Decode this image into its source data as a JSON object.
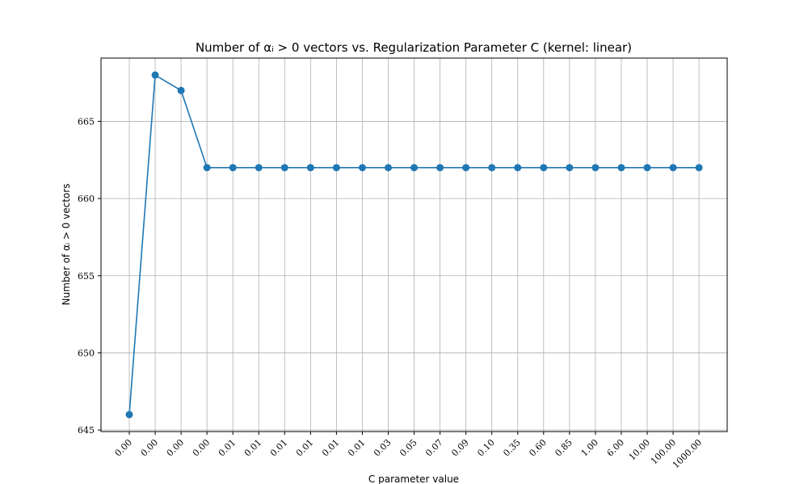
{
  "chart_data": {
    "type": "line",
    "title": "Number of αᵢ > 0 vectors vs. Regularization Parameter C (kernel: linear)",
    "xlabel": "C parameter value",
    "ylabel": "Number of αᵢ > 0 vectors",
    "categories": [
      "0.00",
      "0.00",
      "0.00",
      "0.00",
      "0.01",
      "0.01",
      "0.01",
      "0.01",
      "0.01",
      "0.01",
      "0.03",
      "0.05",
      "0.07",
      "0.09",
      "0.10",
      "0.35",
      "0.60",
      "0.85",
      "1.00",
      "6.00",
      "10.00",
      "100.00",
      "1000.00"
    ],
    "series": [
      {
        "values": [
          646,
          668,
          667,
          662,
          662,
          662,
          662,
          662,
          662,
          662,
          662,
          662,
          662,
          662,
          662,
          662,
          662,
          662,
          662,
          662,
          662,
          662,
          662
        ],
        "color": "#1f77b4"
      }
    ],
    "yticks": [
      645,
      650,
      655,
      660,
      665
    ],
    "ylim": [
      644.9,
      669.1
    ],
    "grid": true,
    "marker": "circle"
  }
}
